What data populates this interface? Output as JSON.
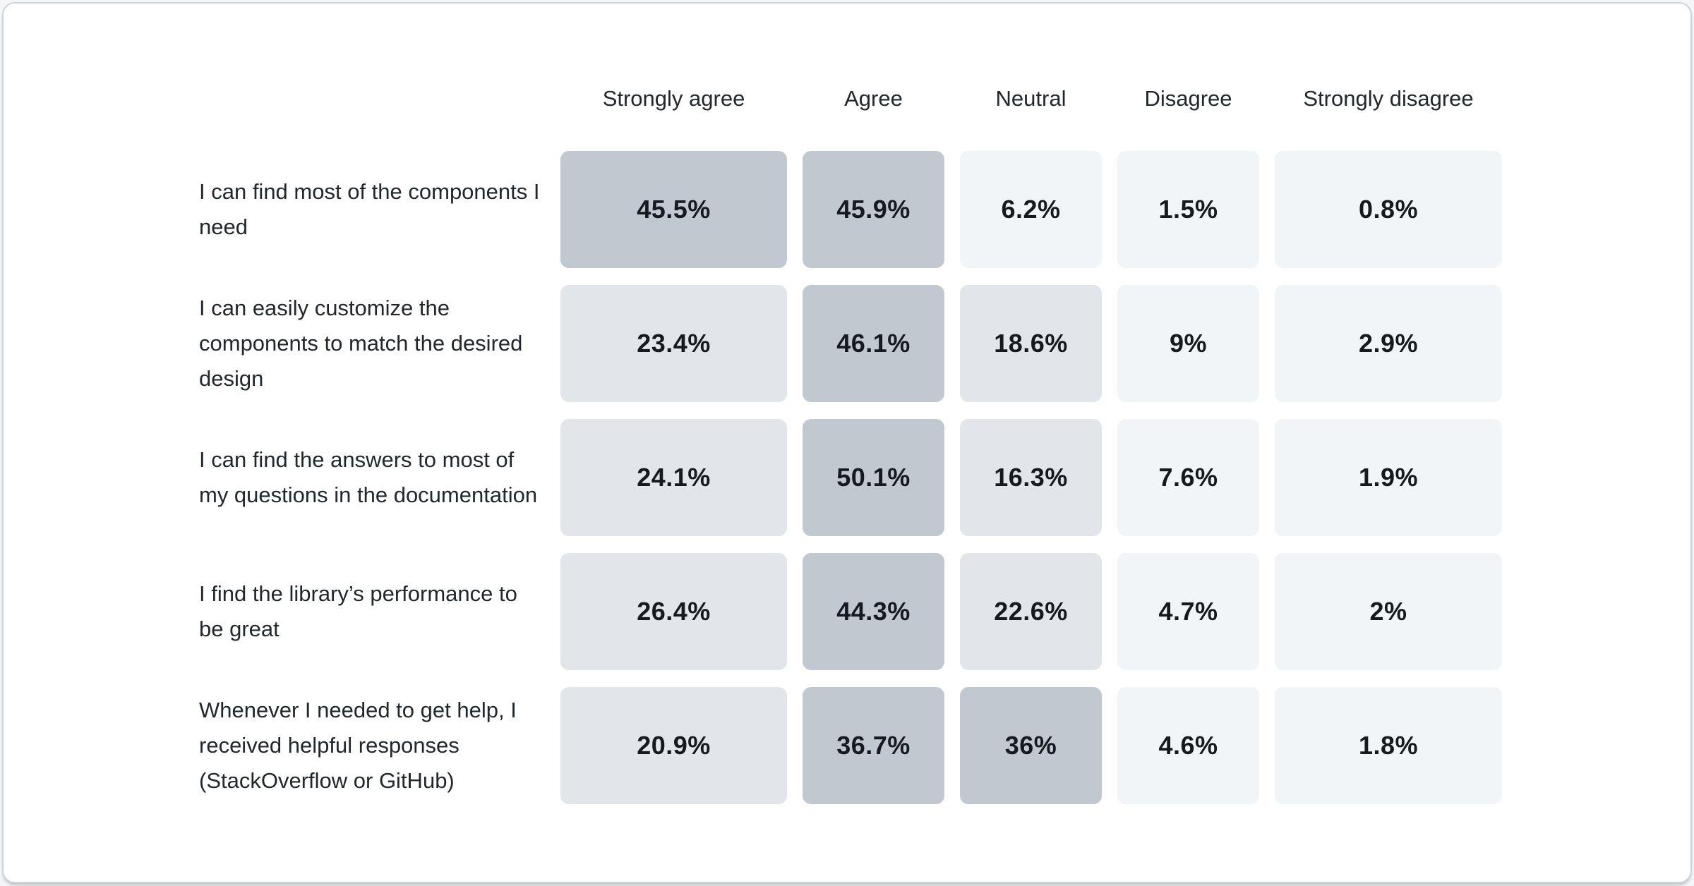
{
  "chart_data": {
    "type": "heatmap",
    "title": "",
    "columns": [
      "Strongly agree",
      "Agree",
      "Neutral",
      "Disagree",
      "Strongly disagree"
    ],
    "rows": [
      {
        "label": "I can find most of the components I need",
        "values": [
          45.5,
          45.9,
          6.2,
          1.5,
          0.8
        ]
      },
      {
        "label": "I can easily customize the components to match the desired design",
        "values": [
          23.4,
          46.1,
          18.6,
          9,
          2.9
        ]
      },
      {
        "label": "I can find the answers to most of my questions in the documentation",
        "values": [
          24.1,
          50.1,
          16.3,
          7.6,
          1.9
        ]
      },
      {
        "label": "I find the library’s performance to be great",
        "values": [
          26.4,
          44.3,
          22.6,
          4.7,
          2
        ]
      },
      {
        "label": "Whenever I needed to get help, I received helpful responses (StackOverflow or GitHub)",
        "values": [
          20.9,
          36.7,
          36,
          4.6,
          1.8
        ]
      }
    ],
    "value_suffix": "%",
    "color_scale": {
      "buckets": [
        {
          "max": 10,
          "color": "#f2f5f8"
        },
        {
          "max": 30,
          "color": "#e2e6ea"
        },
        {
          "max": 100,
          "color": "#c2c8d0"
        }
      ]
    },
    "layout": {
      "legend": "none",
      "grid": "off",
      "cell_value_labels": "on"
    }
  },
  "colors": {
    "card_background": "#ffffff",
    "card_border": "#ced4d9",
    "header_text": "#21272a",
    "row_label_text": "#21272a",
    "cell_value_text": "#161a1e"
  }
}
